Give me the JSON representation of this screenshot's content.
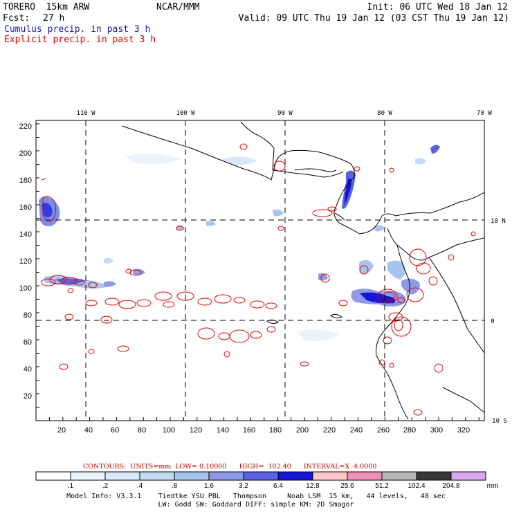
{
  "header": {
    "model": "TORERO  15km ARW",
    "org": "NCAR/MMM",
    "init": "Init: 06 UTC Wed 18 Jan 12",
    "fcst_label": "Fcst:",
    "fcst_hours": "27 h",
    "valid": "Valid: 09 UTC Thu 19 Jan 12 (03 CST Thu 19 Jan 12)",
    "field1": "Cumulus precip. in past 3 h",
    "field2": "Explicit precip. in past 3 h",
    "field1_color": "#1a1aa6",
    "field2_color": "#e00000"
  },
  "map": {
    "lon_labels": [
      "110 W",
      "100 W",
      "90 W",
      "80 W",
      "70 W"
    ],
    "lat_labels": [
      "10 N",
      "0",
      "10 S"
    ],
    "x_ticks": [
      "20",
      "40",
      "60",
      "80",
      "100",
      "120",
      "140",
      "160",
      "180",
      "200",
      "220",
      "240",
      "260",
      "280",
      "300",
      "320"
    ],
    "y_ticks": [
      "20",
      "40",
      "60",
      "80",
      "100",
      "120",
      "140",
      "160",
      "180",
      "200",
      "220"
    ]
  },
  "contour_info": {
    "text": "CONTOURS:  UNITS=mm  LOW= 0.10000      HIGH=  102.40      INTERVAL=X  4.0000",
    "color": "#c00000"
  },
  "legend": {
    "labels": [
      ".1",
      ".2",
      ".4",
      ".8",
      "1.6",
      "3.2",
      "6.4",
      "12.8",
      "25.6",
      "51.2",
      "102.4",
      "204.8"
    ],
    "unit": "mm",
    "colors": [
      "#ffffff",
      "#eaf2fb",
      "#d8e8f7",
      "#c4dcf3",
      "#a8c4ee",
      "#8c9ae8",
      "#5a62e0",
      "#1414d8",
      "#ffc8c8",
      "#f090b8",
      "#b8b8b8",
      "#383838",
      "#d8a8f0"
    ]
  },
  "footer": {
    "line1": "Model Info: V3.3.1    Tiedtke YSU PBL   Thompson     Noah LSM  15 km,   44 levels,   48 sec",
    "line2": "LW: Godd SW: Goddard DIFF: simple KM: 2D Smagor"
  }
}
